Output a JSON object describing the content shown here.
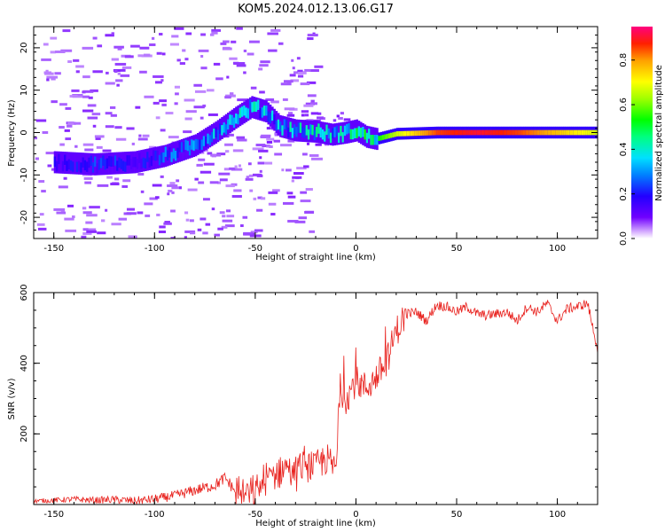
{
  "figure_title": "KOM5.2024.012.13.06.G17",
  "chart_data": [
    {
      "type": "heatmap",
      "xlabel": "Height of straight line (km)",
      "ylabel": "Frequency (Hz)",
      "xlim": [
        -160,
        120
      ],
      "ylim": [
        -25,
        25
      ],
      "xticks": [
        -150,
        -100,
        -50,
        0,
        50,
        100
      ],
      "yticks": [
        -20,
        -10,
        0,
        10,
        20
      ],
      "colorbar": {
        "label": "Normalized spectral amplitude",
        "range": [
          0,
          0.95
        ],
        "ticks": [
          0.0,
          0.2,
          0.4,
          0.6,
          0.8
        ],
        "tick_labels": [
          "0.0",
          "0.2",
          "0.4",
          "0.6",
          "0.8"
        ]
      },
      "ridge": {
        "x": [
          -150,
          -130,
          -110,
          -95,
          -80,
          -70,
          -60,
          -52,
          -45,
          -38,
          -30,
          -20,
          -12,
          -5,
          0,
          5,
          10,
          20,
          40,
          60,
          80,
          100,
          120
        ],
        "freq": [
          -7,
          -7.5,
          -7,
          -5.5,
          -3,
          0,
          3.5,
          6,
          5,
          1.5,
          0.5,
          0.2,
          -0.5,
          0,
          0.5,
          -1,
          -1.5,
          -0.3,
          0,
          0,
          0,
          0,
          0
        ],
        "amplitude": [
          0.15,
          0.2,
          0.2,
          0.25,
          0.25,
          0.3,
          0.3,
          0.35,
          0.3,
          0.3,
          0.35,
          0.35,
          0.35,
          0.35,
          0.4,
          0.45,
          0.55,
          0.7,
          0.9,
          0.95,
          0.9,
          0.8,
          0.7
        ]
      }
    },
    {
      "type": "line",
      "xlabel": "Height of straight line (km)",
      "ylabel": "SNR (v/v)",
      "xlim": [
        -160,
        120
      ],
      "ylim": [
        0,
        600
      ],
      "xticks": [
        -150,
        -100,
        -50,
        0,
        50,
        100
      ],
      "yticks": [
        200,
        400,
        600
      ],
      "series": [
        {
          "color": "#e8201c",
          "x": [
            -160,
            -150,
            -140,
            -130,
            -120,
            -110,
            -100,
            -90,
            -80,
            -70,
            -65,
            -60,
            -55,
            -50,
            -45,
            -40,
            -35,
            -30,
            -25,
            -20,
            -15,
            -10,
            -8,
            -5,
            0,
            5,
            10,
            15,
            20,
            25,
            30,
            35,
            40,
            45,
            50,
            55,
            60,
            65,
            70,
            75,
            80,
            85,
            90,
            95,
            100,
            105,
            110,
            115,
            120
          ],
          "y": [
            10,
            12,
            15,
            12,
            14,
            10,
            15,
            25,
            40,
            55,
            75,
            40,
            30,
            30,
            70,
            90,
            110,
            90,
            120,
            110,
            130,
            100,
            330,
            300,
            350,
            330,
            360,
            400,
            490,
            540,
            545,
            520,
            565,
            560,
            545,
            560,
            540,
            535,
            540,
            545,
            520,
            560,
            545,
            570,
            520,
            555,
            560,
            570,
            440
          ]
        }
      ]
    }
  ]
}
